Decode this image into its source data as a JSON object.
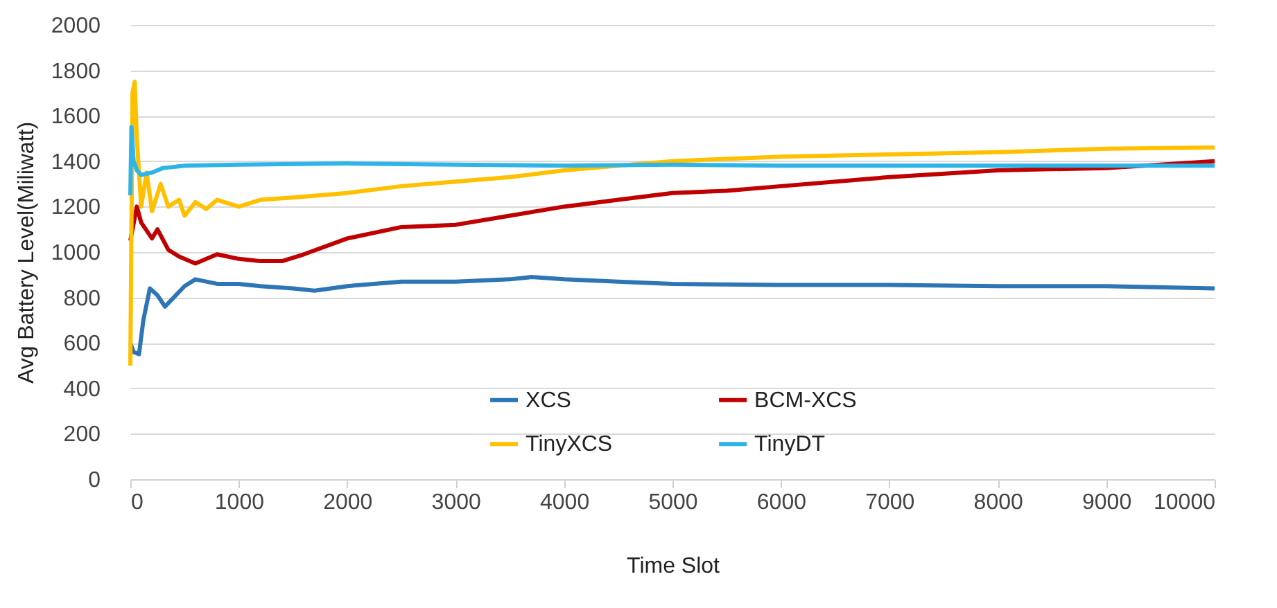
{
  "chart_data": {
    "type": "line",
    "xlabel": "Time Slot",
    "ylabel": "Avg Battery Level(Miliwatt)",
    "xlim": [
      0,
      10000
    ],
    "xticks": [
      0,
      1000,
      2000,
      3000,
      4000,
      5000,
      6000,
      7000,
      8000,
      9000,
      10000
    ],
    "ylim": [
      0,
      2000
    ],
    "yticks": [
      0,
      200,
      400,
      600,
      800,
      1000,
      1200,
      1400,
      1600,
      1800,
      2000
    ],
    "grid": "y",
    "legend": "bottom",
    "series": [
      {
        "name": "XCS",
        "color": "#2e75b6",
        "x": [
          0,
          30,
          80,
          120,
          180,
          250,
          320,
          400,
          500,
          600,
          700,
          800,
          1000,
          1200,
          1500,
          1700,
          2000,
          2500,
          3000,
          3500,
          3700,
          4000,
          4500,
          5000,
          6000,
          7000,
          8000,
          9000,
          10000
        ],
        "values": [
          600,
          560,
          550,
          700,
          840,
          810,
          760,
          800,
          850,
          880,
          870,
          860,
          860,
          850,
          840,
          830,
          850,
          870,
          870,
          880,
          890,
          880,
          870,
          860,
          855,
          855,
          850,
          850,
          840
        ]
      },
      {
        "name": "BCM-XCS",
        "color": "#c00000",
        "x": [
          0,
          60,
          100,
          200,
          250,
          350,
          450,
          600,
          800,
          1000,
          1200,
          1400,
          1600,
          2000,
          2500,
          3000,
          3500,
          4000,
          4500,
          5000,
          5500,
          6000,
          7000,
          8000,
          9000,
          10000
        ],
        "values": [
          1050,
          1200,
          1130,
          1060,
          1100,
          1010,
          980,
          950,
          990,
          970,
          960,
          960,
          990,
          1060,
          1110,
          1120,
          1160,
          1200,
          1230,
          1260,
          1270,
          1290,
          1330,
          1360,
          1370,
          1400
        ]
      },
      {
        "name": "TinyXCS",
        "color": "#ffc000",
        "x": [
          0,
          20,
          40,
          60,
          100,
          150,
          200,
          280,
          350,
          450,
          500,
          600,
          700,
          800,
          1000,
          1200,
          1500,
          2000,
          2500,
          3000,
          3500,
          4000,
          4500,
          5000,
          6000,
          7000,
          8000,
          9000,
          10000
        ],
        "values": [
          500,
          1700,
          1750,
          1500,
          1200,
          1350,
          1180,
          1300,
          1200,
          1230,
          1160,
          1220,
          1190,
          1230,
          1200,
          1230,
          1240,
          1260,
          1290,
          1310,
          1330,
          1360,
          1380,
          1400,
          1420,
          1430,
          1440,
          1455,
          1460
        ]
      },
      {
        "name": "TinyDT",
        "color": "#2eb4e6",
        "x": [
          0,
          10,
          30,
          60,
          100,
          200,
          300,
          500,
          1000,
          2000,
          3000,
          4000,
          5000,
          6000,
          7000,
          8000,
          9000,
          10000
        ],
        "values": [
          1250,
          1550,
          1400,
          1360,
          1340,
          1350,
          1370,
          1380,
          1385,
          1390,
          1385,
          1380,
          1385,
          1380,
          1380,
          1380,
          1380,
          1380
        ]
      }
    ]
  }
}
